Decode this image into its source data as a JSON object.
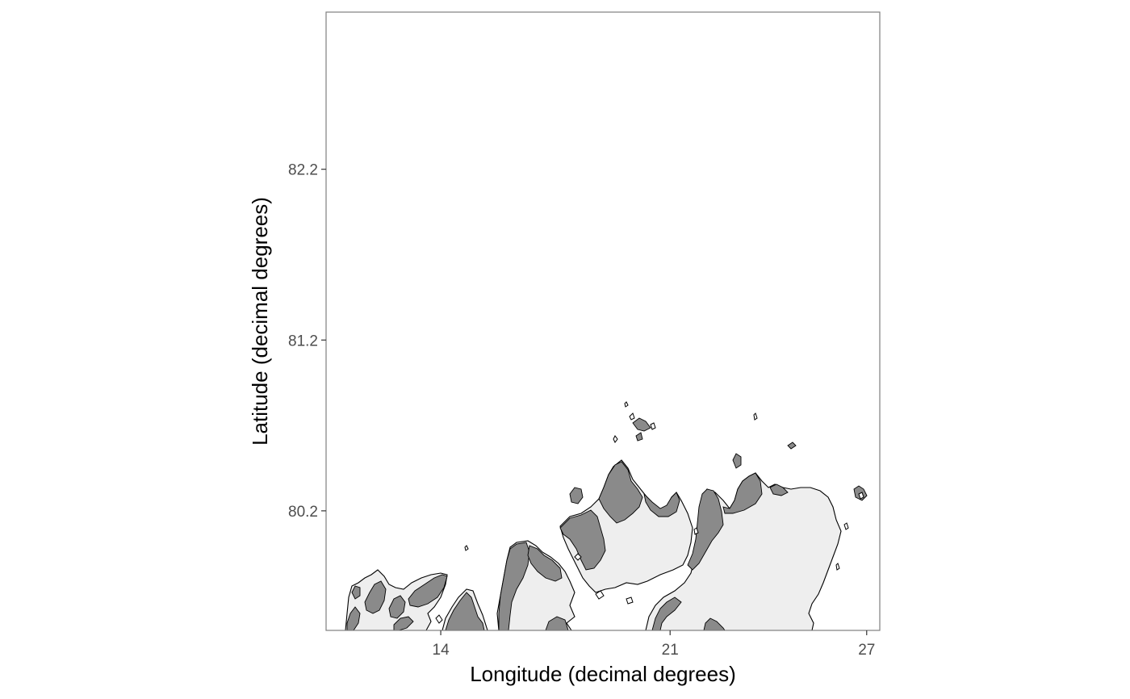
{
  "chart_data": {
    "type": "map",
    "title": "",
    "xlabel": "Longitude (decimal degrees)",
    "ylabel": "Latitude (decimal degrees)",
    "xlim": [
      10.5,
      27.4
    ],
    "ylim": [
      79.5,
      83.12
    ],
    "x_ticks": [
      {
        "value": 14,
        "label": "14"
      },
      {
        "value": 21,
        "label": "21"
      },
      {
        "value": 27,
        "label": "27"
      }
    ],
    "y_ticks": [
      {
        "value": 80.2,
        "label": "80.2"
      },
      {
        "value": 81.2,
        "label": "81.2"
      },
      {
        "value": 82.2,
        "label": "82.2"
      }
    ],
    "grid": false,
    "legend": "none",
    "layers": [
      {
        "name": "land",
        "fill": "#eeeeee",
        "stroke": "#000000"
      },
      {
        "name": "glacier",
        "fill": "#8a8a8a",
        "stroke": "#000000"
      }
    ],
    "panel_background": "#ffffff",
    "panel_border": "#7f7f7f"
  }
}
